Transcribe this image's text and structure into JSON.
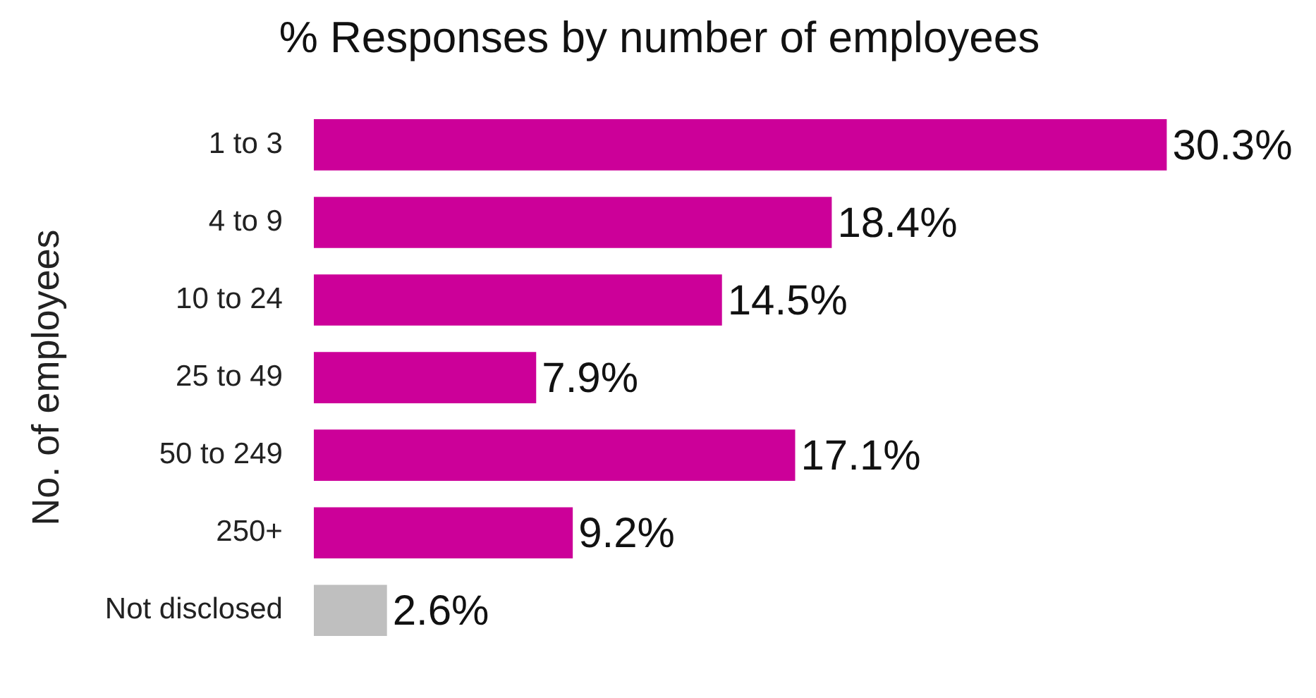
{
  "chart_data": {
    "type": "bar",
    "orientation": "horizontal",
    "title": "% Responses by number of employees",
    "ylabel": "No. of employees",
    "categories": [
      "1 to 3",
      "4 to 9",
      "10 to 24",
      "25 to 49",
      "50 to 249",
      "250+",
      "Not disclosed"
    ],
    "values": [
      30.3,
      18.4,
      14.5,
      7.9,
      17.1,
      9.2,
      2.6
    ],
    "colors": [
      "#cc0099",
      "#cc0099",
      "#cc0099",
      "#cc0099",
      "#cc0099",
      "#cc0099",
      "#bfbfbf"
    ],
    "value_labels": [
      "30.3%",
      "18.4%",
      "14.5%",
      "7.9%",
      "17.1%",
      "9.2%",
      "2.6%"
    ],
    "legend": false
  }
}
